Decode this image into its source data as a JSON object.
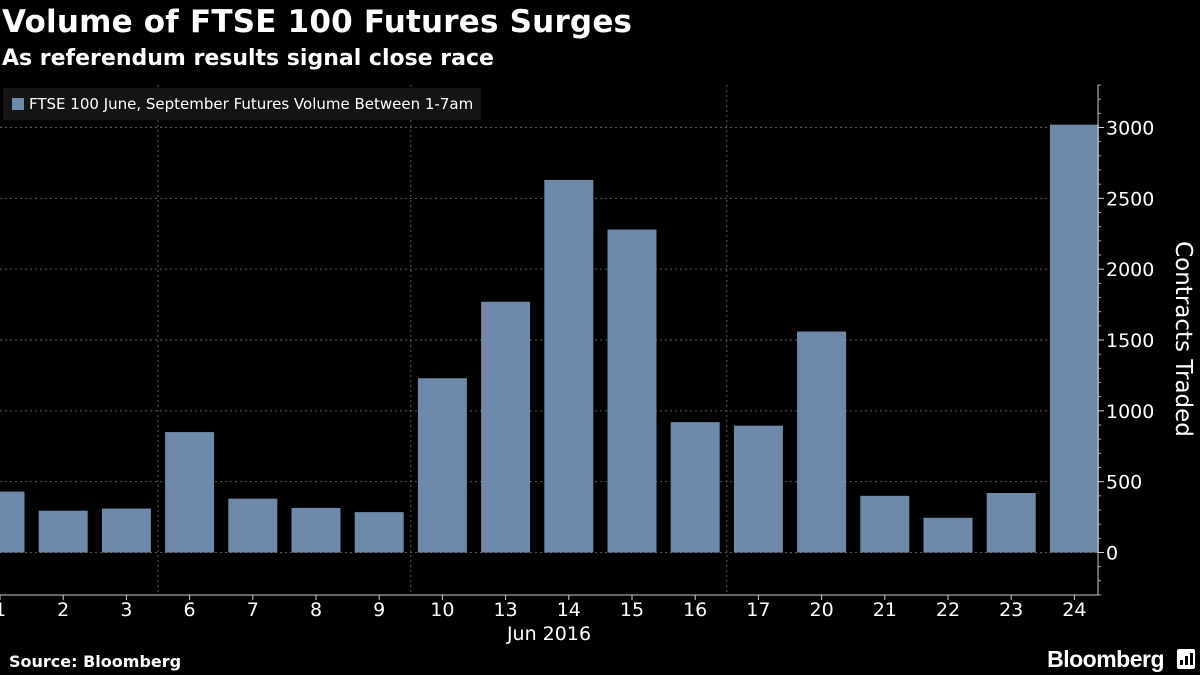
{
  "title": "Volume of FTSE 100 Futures Surges",
  "subtitle": "As referendum results signal close race",
  "source": "Source: Bloomberg",
  "brand": "Bloomberg",
  "colors": {
    "background": "#000000",
    "bar": "#6f89aa",
    "grid": "#5a5a5a",
    "text": "#ffffff"
  },
  "chart_data": {
    "type": "bar",
    "title": "Volume of FTSE 100 Futures Surges",
    "subtitle": "As referendum results signal close race",
    "categories": [
      "1",
      "2",
      "3",
      "6",
      "7",
      "8",
      "9",
      "10",
      "13",
      "14",
      "15",
      "16",
      "17",
      "20",
      "21",
      "22",
      "23",
      "24"
    ],
    "values": [
      430,
      295,
      310,
      850,
      380,
      315,
      285,
      1230,
      1770,
      2630,
      2280,
      920,
      895,
      1560,
      400,
      245,
      420,
      3020
    ],
    "series": [
      {
        "name": "FTSE 100 June, September Futures Volume Between 1-7am",
        "values": [
          430,
          295,
          310,
          850,
          380,
          315,
          285,
          1230,
          1770,
          2630,
          2280,
          920,
          895,
          1560,
          400,
          245,
          420,
          3020
        ]
      }
    ],
    "legend": "top-left",
    "xlabel": "Jun 2016",
    "ylabel": "Contracts Traded",
    "yticks": [
      "0",
      "500",
      "1000",
      "1500",
      "2000",
      "2500",
      "3000"
    ],
    "ylim": [
      -300,
      3300
    ],
    "y_axis_side": "right",
    "grid": true
  }
}
